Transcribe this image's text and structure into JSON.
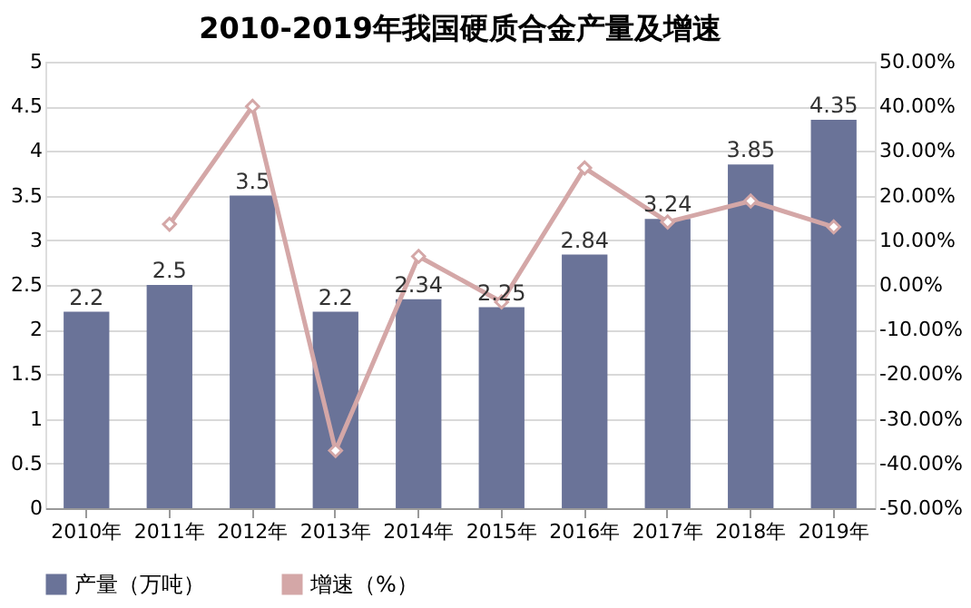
{
  "chart_data": {
    "type": "bar",
    "title": "2010-2019年我国硬质合金产量及增速",
    "categories": [
      "2010年",
      "2011年",
      "2012年",
      "2013年",
      "2014年",
      "2015年",
      "2016年",
      "2017年",
      "2018年",
      "2019年"
    ],
    "series": [
      {
        "name": "产量（万吨）",
        "color": "#6a7398",
        "values": [
          2.2,
          2.5,
          3.5,
          2.2,
          2.34,
          2.25,
          2.84,
          3.24,
          3.85,
          4.35
        ],
        "value_labels": [
          "2.2",
          "2.5",
          "3.5",
          "2.2",
          "2.34",
          "2.25",
          "2.84",
          "3.24",
          "3.85",
          "4.35"
        ]
      },
      {
        "name": "增速（%）",
        "type": "line",
        "axis": "y2",
        "color": "#d4a7a7",
        "marker": "diamond",
        "values": [
          null,
          13.6,
          40.0,
          -37.1,
          6.4,
          -3.8,
          26.2,
          14.1,
          18.8,
          13.0
        ]
      }
    ],
    "ylim": [
      0,
      5
    ],
    "yticks": [
      0,
      0.5,
      1,
      1.5,
      2,
      2.5,
      3,
      3.5,
      4,
      4.5,
      5
    ],
    "y2lim": [
      -50,
      50
    ],
    "y2ticks": [
      {
        "value": -50,
        "label": "-50.00%"
      },
      {
        "value": -40,
        "label": "-40.00%"
      },
      {
        "value": -30,
        "label": "-30.00%"
      },
      {
        "value": -20,
        "label": "-20.00%"
      },
      {
        "value": -10,
        "label": "-10.00%"
      },
      {
        "value": 0,
        "label": "0.00%"
      },
      {
        "value": 10,
        "label": "10.00%"
      },
      {
        "value": 20,
        "label": "20.00%"
      },
      {
        "value": 30,
        "label": "30.00%"
      },
      {
        "value": 40,
        "label": "40.00%"
      },
      {
        "value": 50,
        "label": "50.00%"
      }
    ],
    "grid": "y",
    "legend": "bottom"
  }
}
